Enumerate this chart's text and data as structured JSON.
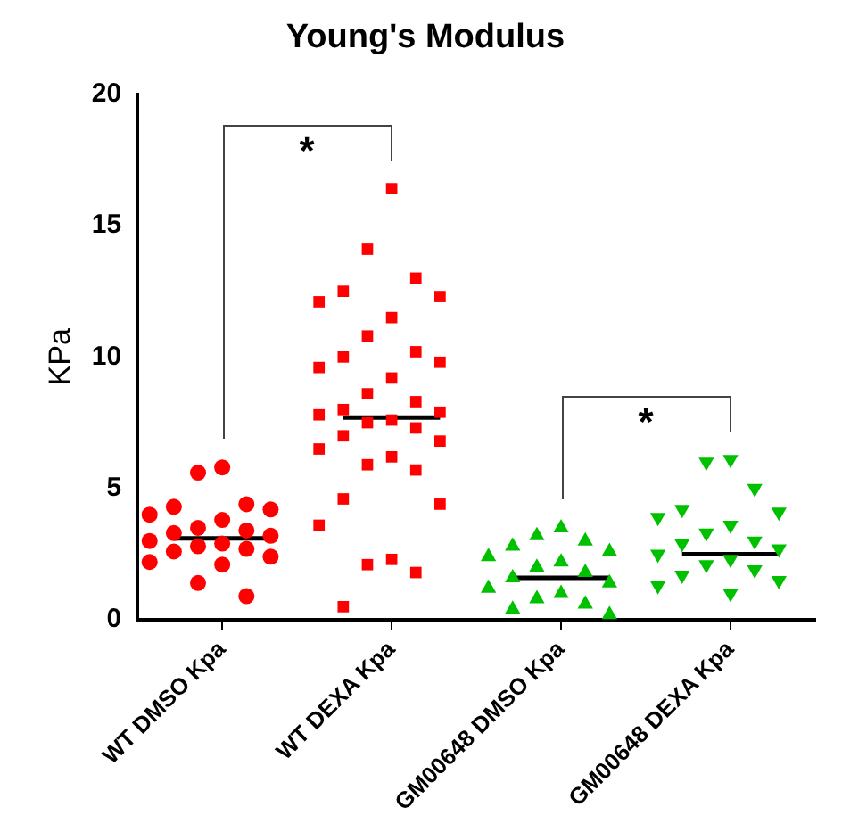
{
  "chart_data": {
    "type": "scatter",
    "title": "Young's Modulus",
    "ylabel": "KPa",
    "categories": [
      null,
      null,
      null,
      "WT DMSO Kpa",
      null,
      null,
      null,
      null,
      null,
      null,
      "WT DEXA Kpa",
      null,
      null,
      null,
      null,
      null,
      null,
      "GM00648 DMSO Kpa",
      null,
      null,
      null,
      null,
      null,
      null,
      "GM00648 DEXA Kpa",
      null,
      null,
      null
    ],
    "ylim": [
      0,
      20
    ],
    "yticks": [
      0,
      5,
      10,
      15,
      20
    ],
    "grid": false,
    "legend": false,
    "annotations": [
      "*",
      "*"
    ],
    "series": [
      {
        "color": "#ff0000",
        "marker": "circle",
        "values": [
          4.0,
          4.3,
          5.6,
          5.8,
          4.4,
          4.2,
          null,
          null,
          null,
          null,
          null,
          null,
          null,
          null,
          null,
          null,
          null,
          null,
          null,
          null,
          null,
          null,
          null,
          null,
          null,
          null,
          null,
          null
        ]
      },
      {
        "color": "#ff0000",
        "marker": "circle",
        "values": [
          3.0,
          3.3,
          3.5,
          3.8,
          3.4,
          3.2,
          null,
          null,
          null,
          null,
          null,
          null,
          null,
          null,
          null,
          null,
          null,
          null,
          null,
          null,
          null,
          null,
          null,
          null,
          null,
          null,
          null,
          null
        ]
      },
      {
        "color": "#ff0000",
        "marker": "circle",
        "values": [
          2.2,
          2.6,
          2.8,
          2.9,
          2.7,
          2.4,
          null,
          null,
          null,
          null,
          null,
          null,
          null,
          null,
          null,
          null,
          null,
          null,
          null,
          null,
          null,
          null,
          null,
          null,
          null,
          null,
          null,
          null
        ]
      },
      {
        "color": "#ff0000",
        "marker": "circle",
        "values": [
          null,
          null,
          1.4,
          2.1,
          0.9,
          null,
          null,
          null,
          null,
          null,
          null,
          null,
          null,
          null,
          null,
          null,
          null,
          null,
          null,
          null,
          null,
          null,
          null,
          null,
          null,
          null,
          null,
          null
        ]
      },
      {
        "color": "#ff0000",
        "marker": "square",
        "values": [
          null,
          null,
          null,
          null,
          null,
          null,
          null,
          12.1,
          12.5,
          14.1,
          16.4,
          13.0,
          12.3,
          null,
          null,
          null,
          null,
          null,
          null,
          null,
          null,
          null,
          null,
          null,
          null,
          null,
          null,
          null
        ]
      },
      {
        "color": "#ff0000",
        "marker": "square",
        "values": [
          null,
          null,
          null,
          null,
          null,
          null,
          null,
          9.6,
          10.0,
          10.8,
          11.5,
          10.2,
          9.8,
          null,
          null,
          null,
          null,
          null,
          null,
          null,
          null,
          null,
          null,
          null,
          null,
          null,
          null,
          null
        ]
      },
      {
        "color": "#ff0000",
        "marker": "square",
        "values": [
          null,
          null,
          null,
          null,
          null,
          null,
          null,
          7.8,
          8.0,
          8.6,
          9.2,
          8.3,
          7.9,
          null,
          null,
          null,
          null,
          null,
          null,
          null,
          null,
          null,
          null,
          null,
          null,
          null,
          null,
          null
        ]
      },
      {
        "color": "#ff0000",
        "marker": "square",
        "values": [
          null,
          null,
          null,
          null,
          null,
          null,
          null,
          6.5,
          7.0,
          7.5,
          7.6,
          7.3,
          6.8,
          null,
          null,
          null,
          null,
          null,
          null,
          null,
          null,
          null,
          null,
          null,
          null,
          null,
          null,
          null
        ]
      },
      {
        "color": "#ff0000",
        "marker": "square",
        "values": [
          null,
          null,
          null,
          null,
          null,
          null,
          null,
          3.6,
          4.6,
          5.9,
          6.2,
          5.7,
          4.4,
          null,
          null,
          null,
          null,
          null,
          null,
          null,
          null,
          null,
          null,
          null,
          null,
          null,
          null,
          null
        ]
      },
      {
        "color": "#ff0000",
        "marker": "square",
        "values": [
          null,
          null,
          null,
          null,
          null,
          null,
          null,
          null,
          0.5,
          2.1,
          2.3,
          1.8,
          null,
          null,
          null,
          null,
          null,
          null,
          null,
          null,
          null,
          null,
          null,
          null,
          null,
          null,
          null,
          null
        ]
      },
      {
        "color": "#00c000",
        "marker": "triangle",
        "values": [
          null,
          null,
          null,
          null,
          null,
          null,
          null,
          null,
          null,
          null,
          null,
          null,
          null,
          null,
          2.4,
          2.8,
          3.2,
          3.5,
          3.0,
          2.6,
          null,
          null,
          null,
          null,
          null,
          null,
          null,
          null
        ]
      },
      {
        "color": "#00c000",
        "marker": "triangle",
        "values": [
          null,
          null,
          null,
          null,
          null,
          null,
          null,
          null,
          null,
          null,
          null,
          null,
          null,
          null,
          1.2,
          1.6,
          2.0,
          2.2,
          1.8,
          1.4,
          null,
          null,
          null,
          null,
          null,
          null,
          null,
          null
        ]
      },
      {
        "color": "#00c000",
        "marker": "triangle",
        "values": [
          null,
          null,
          null,
          null,
          null,
          null,
          null,
          null,
          null,
          null,
          null,
          null,
          null,
          null,
          null,
          0.4,
          0.8,
          1.0,
          0.6,
          0.2,
          null,
          null,
          null,
          null,
          null,
          null,
          null,
          null
        ]
      },
      {
        "color": "#00c000",
        "marker": "triangle_down",
        "values": [
          null,
          null,
          null,
          null,
          null,
          null,
          null,
          null,
          null,
          null,
          null,
          null,
          null,
          null,
          null,
          null,
          null,
          null,
          null,
          null,
          null,
          3.9,
          4.2,
          6.0,
          6.1,
          5.0,
          4.1,
          null
        ]
      },
      {
        "color": "#00c000",
        "marker": "triangle_down",
        "values": [
          null,
          null,
          null,
          null,
          null,
          null,
          null,
          null,
          null,
          null,
          null,
          null,
          null,
          null,
          null,
          null,
          null,
          null,
          null,
          null,
          null,
          2.5,
          2.9,
          3.3,
          3.6,
          3.0,
          2.7,
          null
        ]
      },
      {
        "color": "#00c000",
        "marker": "triangle_down",
        "values": [
          null,
          null,
          null,
          null,
          null,
          null,
          null,
          null,
          null,
          null,
          null,
          null,
          null,
          null,
          null,
          null,
          null,
          null,
          null,
          null,
          null,
          1.3,
          1.7,
          2.1,
          2.3,
          1.9,
          1.5,
          null
        ]
      },
      {
        "color": "#00c000",
        "marker": "triangle_down",
        "values": [
          null,
          null,
          null,
          null,
          null,
          null,
          null,
          null,
          null,
          null,
          null,
          null,
          null,
          null,
          null,
          null,
          null,
          null,
          null,
          null,
          null,
          null,
          null,
          null,
          1.0,
          null,
          null,
          null
        ]
      },
      {
        "type": "line",
        "color": "#000000",
        "marker": "none",
        "values": [
          null,
          3.1,
          3.1,
          3.1,
          3.1,
          3.1,
          null,
          null,
          null,
          null,
          null,
          null,
          null,
          null,
          null,
          null,
          null,
          null,
          null,
          null,
          null,
          null,
          null,
          null,
          null,
          null,
          null,
          null
        ]
      },
      {
        "type": "line",
        "color": "#000000",
        "marker": "none",
        "values": [
          null,
          null,
          null,
          null,
          null,
          null,
          null,
          null,
          7.7,
          7.7,
          7.7,
          7.7,
          7.7,
          null,
          null,
          null,
          null,
          null,
          null,
          null,
          null,
          null,
          null,
          null,
          null,
          null,
          null,
          null
        ]
      },
      {
        "type": "line",
        "color": "#000000",
        "marker": "none",
        "values": [
          null,
          null,
          null,
          null,
          null,
          null,
          null,
          null,
          null,
          null,
          null,
          null,
          null,
          null,
          null,
          1.6,
          1.6,
          1.6,
          1.6,
          1.6,
          null,
          null,
          null,
          null,
          null,
          null,
          null,
          null
        ]
      },
      {
        "type": "line",
        "color": "#000000",
        "marker": "none",
        "values": [
          null,
          null,
          null,
          null,
          null,
          null,
          null,
          null,
          null,
          null,
          null,
          null,
          null,
          null,
          null,
          null,
          null,
          null,
          null,
          null,
          null,
          null,
          2.5,
          2.5,
          2.5,
          2.5,
          2.5,
          null
        ]
      }
    ]
  }
}
